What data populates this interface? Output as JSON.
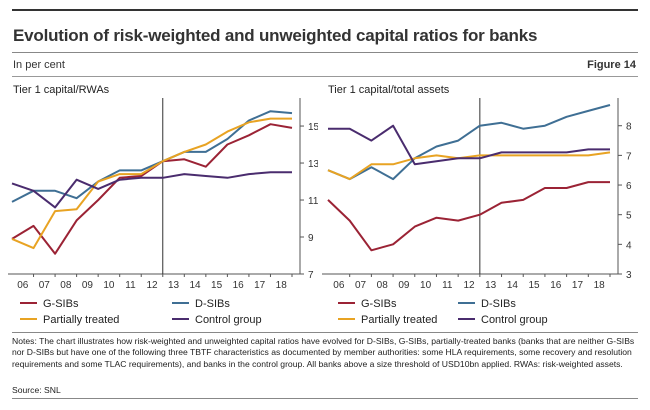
{
  "title": "Evolution of risk-weighted and unweighted capital ratios for banks",
  "unit": "In per cent",
  "figure": "Figure 14",
  "panels": [
    {
      "title": "Tier 1 capital/RWAs"
    },
    {
      "title": "Tier 1 capital/total assets"
    }
  ],
  "legend": [
    {
      "label": "G-SIBs",
      "color": "#9b2335"
    },
    {
      "label": "D-SIBs",
      "color": "#3f6f94"
    },
    {
      "label": "Partially treated",
      "color": "#e8a323"
    },
    {
      "label": "Control group",
      "color": "#4a2c6e"
    }
  ],
  "notes": "Notes: The chart illustrates how risk-weighted and unweighted capital ratios have evolved for D-SIBs, G-SIBs, partially-treated banks (banks that are neither G-SIBs nor D-SIBs but have one of the following three TBTF characteristics as documented by member authorities: some HLA requirements, some recovery and resolution requirements and some TLAC requirements), and banks in the control group. All banks above a size threshold of USD10bn applied. RWAs: risk-weighted assets.",
  "source": "Source: SNL",
  "chart_data": [
    {
      "type": "line",
      "title": "Tier 1 capital/RWAs",
      "x": [
        "2005",
        "2006",
        "2007",
        "2008",
        "2009",
        "2010",
        "2011",
        "2012",
        "2013",
        "2014",
        "2015",
        "2016",
        "2017",
        "2018"
      ],
      "xticks": [
        "06",
        "07",
        "08",
        "09",
        "10",
        "11",
        "12",
        "13",
        "14",
        "15",
        "16",
        "17",
        "18"
      ],
      "yticks": [
        7,
        9,
        11,
        13,
        15
      ],
      "ylim": [
        7,
        16.3
      ],
      "y_axis_side": "right",
      "vline_at": "2012",
      "series": [
        {
          "name": "G-SIBs",
          "color": "#9b2335",
          "values": [
            8.9,
            9.6,
            8.1,
            9.9,
            11.0,
            12.2,
            12.3,
            13.1,
            13.2,
            12.8,
            14.0,
            14.5,
            15.1,
            14.9
          ]
        },
        {
          "name": "D-SIBs",
          "color": "#3f6f94",
          "values": [
            10.9,
            11.5,
            11.5,
            11.1,
            12.0,
            12.6,
            12.6,
            13.1,
            13.6,
            13.6,
            14.3,
            15.3,
            15.8,
            15.7
          ]
        },
        {
          "name": "Partially treated",
          "color": "#e8a323",
          "values": [
            8.9,
            8.4,
            10.4,
            10.5,
            12.0,
            12.4,
            12.4,
            13.1,
            13.6,
            14.0,
            14.7,
            15.2,
            15.4,
            15.4
          ]
        },
        {
          "name": "Control group",
          "color": "#4a2c6e",
          "values": [
            11.9,
            11.5,
            10.6,
            12.1,
            11.6,
            12.1,
            12.2,
            12.2,
            12.4,
            12.3,
            12.2,
            12.4,
            12.5,
            12.5
          ]
        }
      ]
    },
    {
      "type": "line",
      "title": "Tier 1 capital/total assets",
      "x": [
        "2005",
        "2006",
        "2007",
        "2008",
        "2009",
        "2010",
        "2011",
        "2012",
        "2013",
        "2014",
        "2015",
        "2016",
        "2017",
        "2018"
      ],
      "xticks": [
        "06",
        "07",
        "08",
        "09",
        "10",
        "11",
        "12",
        "13",
        "14",
        "15",
        "16",
        "17",
        "18"
      ],
      "yticks": [
        3,
        4,
        5,
        6,
        7,
        8
      ],
      "ylim": [
        3,
        8.8
      ],
      "y_axis_side": "right",
      "vline_at": "2012",
      "series": [
        {
          "name": "G-SIBs",
          "color": "#9b2335",
          "values": [
            5.5,
            4.8,
            3.8,
            4.0,
            4.6,
            4.9,
            4.8,
            5.0,
            5.4,
            5.5,
            5.9,
            5.9,
            6.1,
            6.1
          ]
        },
        {
          "name": "D-SIBs",
          "color": "#3f6f94",
          "values": [
            6.5,
            6.2,
            6.6,
            6.2,
            6.9,
            7.3,
            7.5,
            8.0,
            8.1,
            7.9,
            8.0,
            8.3,
            8.5,
            8.7
          ]
        },
        {
          "name": "Partially treated",
          "color": "#e8a323",
          "values": [
            6.5,
            6.2,
            6.7,
            6.7,
            6.9,
            7.0,
            6.9,
            7.0,
            7.0,
            7.0,
            7.0,
            7.0,
            7.0,
            7.1
          ]
        },
        {
          "name": "Control group",
          "color": "#4a2c6e",
          "values": [
            7.9,
            7.9,
            7.5,
            8.0,
            6.7,
            6.8,
            6.9,
            6.9,
            7.1,
            7.1,
            7.1,
            7.1,
            7.2,
            7.2
          ]
        }
      ]
    }
  ]
}
